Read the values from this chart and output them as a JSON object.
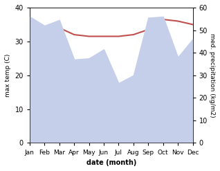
{
  "months": [
    "Jan",
    "Feb",
    "Mar",
    "Apr",
    "May",
    "Jun",
    "Jul",
    "Aug",
    "Sep",
    "Oct",
    "Nov",
    "Dec"
  ],
  "month_indices": [
    0,
    1,
    2,
    3,
    4,
    5,
    6,
    7,
    8,
    9,
    10,
    11
  ],
  "temp_max": [
    32.5,
    32.0,
    34.0,
    32.0,
    31.5,
    31.5,
    31.5,
    32.0,
    33.5,
    36.5,
    36.0,
    35.0
  ],
  "precip": [
    56.0,
    52.0,
    54.5,
    37.0,
    37.5,
    41.5,
    26.5,
    30.0,
    55.5,
    56.0,
    38.0,
    46.0
  ],
  "temp_color": "#c0504d",
  "precip_fill_color": "#c5cfea",
  "left_ylim": [
    0,
    40
  ],
  "right_ylim": [
    0,
    60
  ],
  "left_yticks": [
    0,
    10,
    20,
    30,
    40
  ],
  "right_yticks": [
    0,
    10,
    20,
    30,
    40,
    50,
    60
  ],
  "xlabel": "date (month)",
  "ylabel_left": "max temp (C)",
  "ylabel_right": "med. precipitation (kg/m2)",
  "bg_color": "#ffffff",
  "figsize": [
    3.18,
    2.47
  ],
  "dpi": 100
}
